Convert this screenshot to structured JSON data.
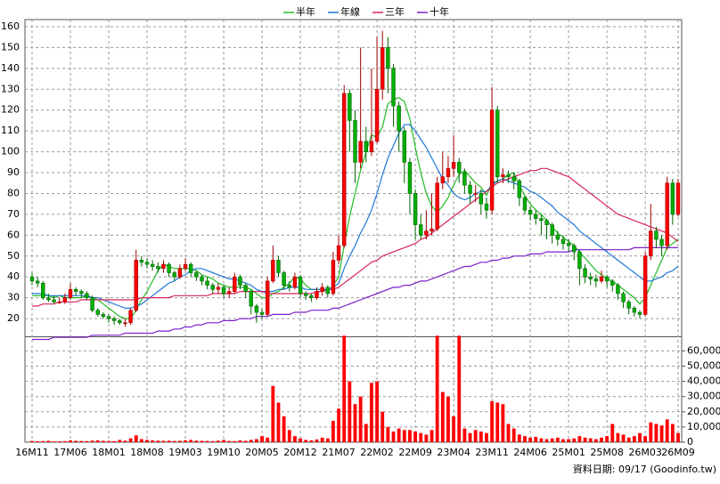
{
  "chart_data": {
    "type": "candlestick",
    "categories": [
      "16M11",
      null,
      null,
      null,
      null,
      null,
      null,
      "17M06",
      null,
      null,
      null,
      null,
      null,
      null,
      "18M01",
      null,
      null,
      null,
      null,
      null,
      null,
      "18M08",
      null,
      null,
      null,
      null,
      null,
      null,
      "19M03",
      null,
      null,
      null,
      null,
      null,
      null,
      "19M10",
      null,
      null,
      null,
      null,
      null,
      null,
      "20M05",
      null,
      null,
      null,
      null,
      null,
      null,
      "20M12",
      null,
      null,
      null,
      null,
      null,
      null,
      "21M07",
      null,
      null,
      null,
      null,
      null,
      null,
      "22M02",
      null,
      null,
      null,
      null,
      null,
      null,
      "22M09",
      null,
      null,
      null,
      null,
      null,
      null,
      "23M04",
      null,
      null,
      null,
      null,
      null,
      null,
      "23M11",
      null,
      null,
      null,
      null,
      null,
      null,
      "24M06",
      null,
      null,
      null,
      null,
      null,
      null,
      "25M01",
      null,
      null,
      null,
      null,
      null,
      null,
      "25M08",
      null,
      null,
      null,
      null,
      null,
      null,
      "26M03",
      null,
      null,
      null,
      null,
      null,
      "26M09"
    ],
    "open": [
      40,
      38,
      37,
      30,
      29,
      28,
      28,
      30,
      34,
      33,
      32,
      30,
      24,
      22,
      21,
      20,
      19,
      18,
      18,
      24,
      48,
      47,
      46,
      45,
      44,
      46,
      42,
      40,
      44,
      46,
      42,
      40,
      38,
      36,
      34,
      35,
      32,
      33,
      40,
      36,
      33,
      26,
      23,
      22,
      38,
      48,
      42,
      36,
      35,
      40,
      32,
      31,
      30,
      33,
      35,
      32,
      48,
      55,
      128,
      115,
      95,
      105,
      100,
      105,
      130,
      150,
      140,
      122,
      110,
      95,
      80,
      65,
      60,
      62,
      63,
      85,
      88,
      92,
      95,
      90,
      84,
      80,
      80,
      75,
      72,
      120,
      88,
      89,
      88,
      86,
      78,
      72,
      70,
      68,
      67,
      65,
      60,
      58,
      56,
      55,
      52,
      44,
      40,
      39,
      38,
      40,
      38,
      36,
      32,
      28,
      25,
      23,
      22,
      50,
      62,
      58,
      55,
      85,
      70
    ],
    "high": [
      42,
      40,
      38,
      32,
      31,
      30,
      32,
      37,
      35,
      34,
      33,
      31,
      25,
      23,
      22,
      21,
      20,
      20,
      25,
      53,
      50,
      49,
      48,
      47,
      48,
      47,
      43,
      46,
      49,
      47,
      43,
      41,
      40,
      37,
      37,
      36,
      35,
      42,
      41,
      37,
      34,
      27,
      25,
      40,
      55,
      50,
      43,
      38,
      42,
      41,
      33,
      32,
      35,
      37,
      36,
      52,
      60,
      132,
      130,
      120,
      150,
      112,
      140,
      155,
      158,
      155,
      142,
      124,
      112,
      97,
      82,
      70,
      72,
      80,
      88,
      100,
      98,
      108,
      97,
      92,
      86,
      84,
      82,
      78,
      131,
      122,
      92,
      91,
      90,
      87,
      79,
      74,
      72,
      70,
      68,
      66,
      62,
      60,
      58,
      56,
      53,
      46,
      42,
      41,
      43,
      41,
      39,
      37,
      33,
      29,
      26,
      24,
      52,
      75,
      64,
      60,
      88,
      87,
      87
    ],
    "low": [
      36,
      35,
      29,
      28,
      27,
      27,
      27,
      29,
      31,
      30,
      29,
      23,
      21,
      20,
      18,
      17,
      17,
      16,
      17,
      23,
      45,
      44,
      43,
      42,
      42,
      40,
      38,
      39,
      43,
      40,
      38,
      36,
      34,
      32,
      32,
      30,
      30,
      32,
      34,
      30,
      22,
      18,
      20,
      21,
      37,
      40,
      34,
      33,
      34,
      30,
      29,
      28,
      29,
      31,
      30,
      31,
      46,
      54,
      100,
      85,
      92,
      95,
      98,
      104,
      125,
      128,
      112,
      100,
      85,
      70,
      58,
      58,
      58,
      60,
      62,
      82,
      85,
      88,
      85,
      80,
      75,
      76,
      70,
      68,
      70,
      85,
      85,
      85,
      82,
      74,
      70,
      67,
      65,
      60,
      58,
      56,
      55,
      53,
      52,
      48,
      36,
      37,
      36,
      35,
      37,
      35,
      33,
      29,
      25,
      22,
      21,
      20,
      21,
      48,
      54,
      50,
      53,
      65,
      69
    ],
    "close": [
      38,
      37,
      30,
      29,
      28,
      28,
      30,
      34,
      33,
      32,
      30,
      24,
      22,
      21,
      20,
      19,
      18,
      18,
      24,
      48,
      47,
      46,
      45,
      44,
      46,
      42,
      40,
      44,
      46,
      42,
      40,
      38,
      36,
      34,
      35,
      32,
      33,
      40,
      36,
      33,
      26,
      23,
      22,
      38,
      48,
      42,
      36,
      35,
      40,
      32,
      31,
      30,
      33,
      35,
      32,
      48,
      55,
      128,
      115,
      95,
      105,
      100,
      105,
      130,
      150,
      140,
      122,
      110,
      95,
      80,
      65,
      60,
      62,
      63,
      85,
      88,
      92,
      95,
      90,
      84,
      80,
      80,
      75,
      72,
      120,
      88,
      89,
      88,
      86,
      78,
      72,
      70,
      68,
      67,
      65,
      60,
      58,
      56,
      55,
      52,
      44,
      40,
      39,
      38,
      40,
      38,
      36,
      32,
      28,
      25,
      23,
      22,
      50,
      62,
      58,
      55,
      85,
      70,
      85
    ],
    "volume": [
      800,
      600,
      700,
      900,
      500,
      600,
      700,
      1200,
      900,
      800,
      700,
      1000,
      1200,
      900,
      800,
      700,
      1500,
      1000,
      2500,
      4500,
      2000,
      1500,
      1200,
      1000,
      900,
      1000,
      800,
      900,
      1200,
      1500,
      1000,
      900,
      800,
      700,
      1000,
      1500,
      800,
      700,
      1200,
      900,
      1500,
      2000,
      4000,
      3000,
      37000,
      26000,
      17000,
      8000,
      4000,
      2500,
      1500,
      1200,
      1800,
      3000,
      2500,
      14000,
      22000,
      70000,
      40000,
      25000,
      30000,
      12000,
      39000,
      40000,
      20000,
      10000,
      7000,
      9000,
      8000,
      8000,
      7000,
      6000,
      5000,
      8000,
      70000,
      33000,
      30000,
      17000,
      70000,
      9000,
      6000,
      8000,
      7000,
      6000,
      27000,
      26000,
      25000,
      12000,
      9000,
      5000,
      4000,
      3000,
      3500,
      2500,
      2000,
      2500,
      3000,
      2000,
      2000,
      2500,
      4000,
      3000,
      2500,
      2000,
      3000,
      4000,
      12000,
      6000,
      5000,
      3000,
      4000,
      6000,
      4000,
      13000,
      12000,
      11000,
      15000,
      12000,
      6000
    ],
    "up_color": "#ff0000",
    "down_color": "#00b000",
    "volume_color": "#ff0000",
    "ylim": [
      11.5,
      163.4
    ],
    "yticks": [
      20,
      30,
      40,
      50,
      60,
      70,
      80,
      90,
      100,
      110,
      120,
      130,
      140,
      150,
      160
    ],
    "y2lim": [
      0,
      69000
    ],
    "y2ticks": [
      0,
      {
        "value": 10000,
        "label": "10,000"
      },
      {
        "value": 20000,
        "label": "20,000"
      },
      {
        "value": 30000,
        "label": "30,000"
      },
      {
        "value": 40000,
        "label": "40,000"
      },
      {
        "value": 50000,
        "label": "50,000"
      },
      {
        "value": 60000,
        "label": "60,000"
      }
    ],
    "grid": true,
    "series": [
      {
        "name": "半年",
        "color": "#22bb22",
        "values": [
          31,
          31,
          31,
          31,
          30,
          31,
          30,
          30,
          30,
          30,
          31,
          30,
          29,
          27,
          25,
          23,
          21,
          20,
          20,
          24,
          29,
          33,
          38,
          43,
          46,
          45,
          44,
          44,
          44,
          44,
          43,
          41,
          40,
          39,
          37,
          36,
          35,
          35,
          35,
          35,
          34,
          32,
          30,
          30,
          32,
          33,
          35,
          37,
          40,
          39,
          36,
          34,
          34,
          34,
          33,
          36,
          40,
          55,
          69,
          80,
          91,
          100,
          108,
          107,
          112,
          123,
          125,
          126,
          124,
          116,
          102,
          90,
          80,
          74,
          71,
          74,
          78,
          84,
          89,
          91,
          88,
          85,
          83,
          79,
          85,
          86,
          87,
          89,
          90,
          84,
          79,
          75,
          72,
          70,
          67,
          64,
          61,
          59,
          57,
          55,
          52,
          49,
          46,
          43,
          41,
          39,
          38,
          36,
          34,
          32,
          30,
          27,
          30,
          36,
          42,
          48,
          54,
          56,
          58
        ]
      },
      {
        "name": "年線",
        "color": "#1e78d8",
        "values": [
          32,
          32,
          32,
          31,
          31,
          31,
          31,
          31,
          31,
          31,
          31,
          30,
          30,
          29,
          28,
          27,
          26,
          25,
          25,
          26,
          27,
          29,
          31,
          33,
          35,
          37,
          38,
          40,
          41,
          43,
          44,
          44,
          43,
          42,
          41,
          40,
          39,
          39,
          38,
          37,
          36,
          34,
          33,
          33,
          33,
          34,
          34,
          35,
          35,
          35,
          34,
          34,
          34,
          34,
          34,
          35,
          37,
          44,
          50,
          55,
          61,
          66,
          72,
          80,
          89,
          97,
          103,
          109,
          113,
          113,
          110,
          106,
          102,
          97,
          92,
          87,
          84,
          80,
          78,
          77,
          78,
          80,
          81,
          81,
          84,
          86,
          87,
          86,
          85,
          84,
          83,
          81,
          80,
          78,
          76,
          74,
          71,
          69,
          67,
          65,
          62,
          60,
          58,
          56,
          54,
          52,
          50,
          48,
          46,
          44,
          42,
          40,
          38,
          38,
          39,
          40,
          42,
          43,
          45
        ]
      },
      {
        "name": "三年",
        "color": "#d8245a",
        "values": [
          26,
          26,
          27,
          27,
          27,
          28,
          28,
          28,
          28,
          29,
          29,
          29,
          29,
          29,
          29,
          29,
          29,
          29,
          29,
          29,
          30,
          30,
          30,
          30,
          30,
          30,
          31,
          31,
          31,
          31,
          31,
          31,
          31,
          32,
          32,
          32,
          32,
          32,
          33,
          33,
          33,
          33,
          33,
          32,
          32,
          32,
          32,
          32,
          32,
          32,
          32,
          32,
          33,
          33,
          34,
          34,
          35,
          37,
          39,
          41,
          43,
          45,
          47,
          48,
          50,
          51,
          52,
          53,
          54,
          55,
          56,
          58,
          59,
          61,
          63,
          65,
          67,
          69,
          71,
          73,
          75,
          77,
          79,
          81,
          83,
          85,
          86,
          87,
          88,
          89,
          90,
          91,
          91,
          92,
          92,
          91,
          90,
          89,
          88,
          86,
          84,
          82,
          80,
          78,
          76,
          74,
          72,
          70,
          69,
          68,
          67,
          66,
          65,
          64,
          63,
          62,
          61,
          59,
          57
        ]
      },
      {
        "name": "十年",
        "color": "#7a1fc8",
        "values": [
          10,
          10,
          10,
          10,
          11,
          11,
          11,
          11,
          11,
          11,
          11,
          12,
          12,
          12,
          12,
          12,
          12,
          13,
          13,
          13,
          13,
          13,
          13,
          14,
          14,
          14,
          15,
          15,
          16,
          16,
          17,
          17,
          18,
          18,
          18,
          19,
          19,
          19,
          20,
          20,
          20,
          21,
          21,
          21,
          22,
          22,
          22,
          22,
          23,
          23,
          23,
          24,
          24,
          24,
          24,
          25,
          25,
          26,
          27,
          28,
          29,
          30,
          31,
          32,
          33,
          34,
          35,
          35,
          36,
          36,
          37,
          38,
          38,
          39,
          40,
          41,
          42,
          43,
          44,
          45,
          45,
          46,
          47,
          47,
          48,
          48,
          49,
          49,
          50,
          50,
          50,
          51,
          51,
          51,
          52,
          52,
          52,
          52,
          52,
          53,
          53,
          53,
          53,
          53,
          53,
          53,
          53,
          53,
          53,
          53,
          54,
          54,
          54,
          54,
          54,
          54,
          54,
          54,
          54
        ]
      }
    ],
    "source": "資料日期: 09/17 (Goodinfo.tw)"
  }
}
